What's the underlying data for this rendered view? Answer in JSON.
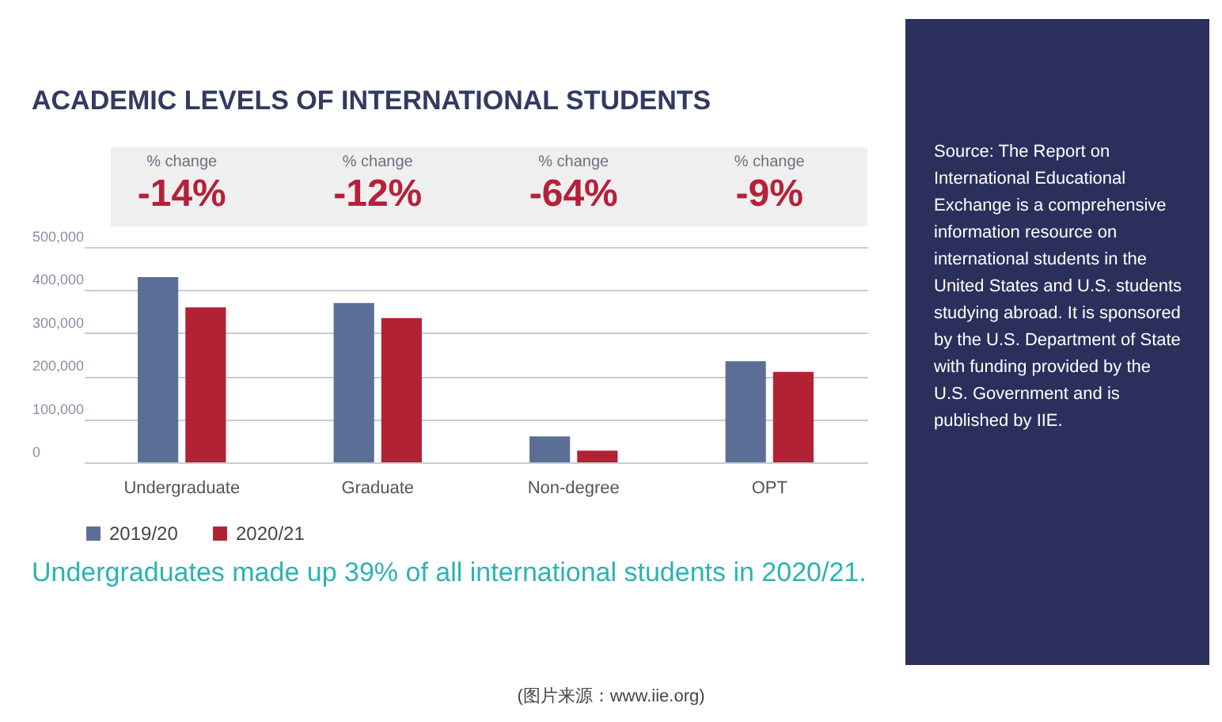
{
  "chart_data": {
    "type": "bar",
    "title": "ACADEMIC LEVELS OF INTERNATIONAL STUDENTS",
    "categories": [
      "Undergraduate",
      "Graduate",
      "Non-degree",
      "OPT"
    ],
    "series": [
      {
        "name": "2019/20",
        "color": "#5b6f96",
        "values": [
          430000,
          370000,
          60000,
          235000
        ]
      },
      {
        "name": "2020/21",
        "color": "#b22234",
        "values": [
          360000,
          335000,
          27000,
          210000
        ]
      }
    ],
    "ylim": [
      0,
      500000
    ],
    "yticks": [
      0,
      {
        "value": 100000,
        "label": "100,000"
      },
      {
        "value": 200000,
        "label": "200,000"
      },
      {
        "value": 300000,
        "label": "300,000"
      },
      {
        "value": 400000,
        "label": "400,000"
      },
      {
        "value": 500000,
        "label": "500,000"
      }
    ],
    "grid": "y",
    "legend": "bottom",
    "annotations": [
      "Undergraduates made up 39% of all international students in 2020/21.",
      "Source: The Report on International Educational Exchange is a comprehensive information resource on international students in the United States and U.S. students studying abroad. It is sponsored by the U.S. Department of State with funding provided by the U.S. Government and is published by IIE.",
      "(图片来源：www.iie.org)",
      "% change",
      "-14%",
      "% change",
      "-12%",
      "% change",
      "-64%",
      "% change",
      "-9%"
    ]
  }
}
